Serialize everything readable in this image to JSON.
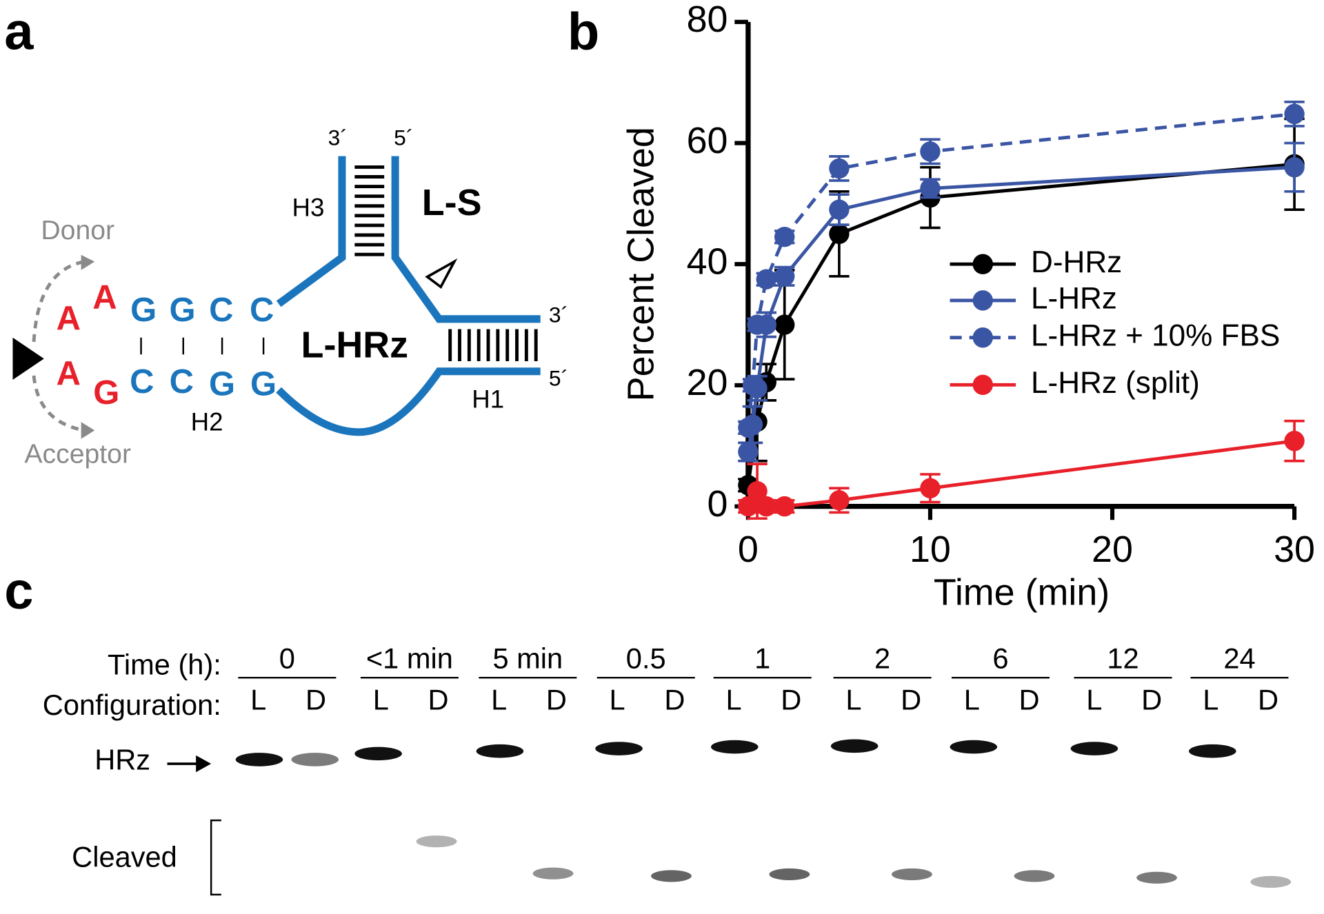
{
  "diagram": {
    "panel_label": "a",
    "donor": "Donor",
    "acceptor": "Acceptor",
    "red_bases": [
      "A",
      "A",
      "A",
      "G"
    ],
    "stem_top": [
      "G",
      "G",
      "C",
      "C"
    ],
    "stem_bottom": [
      "C",
      "C",
      "G",
      "G"
    ],
    "h1": "H1",
    "h2": "H2",
    "h3": "H3",
    "strand_ends": [
      "3´",
      "5´",
      "3´",
      "5´"
    ],
    "substrate": "L-S",
    "ribozyme": "L-HRz"
  },
  "chart_data": {
    "type": "line",
    "panel_label": "b",
    "x_label": "Time (min)",
    "y_label": "Percent Cleaved",
    "xlim": [
      0,
      30
    ],
    "ylim": [
      0,
      80
    ],
    "xticks": [
      0,
      10,
      20,
      30
    ],
    "yticks": [
      0,
      20,
      40,
      60,
      80
    ],
    "legend": "right",
    "series": [
      {
        "name": "D-HRz",
        "color": "#000000",
        "dashed": false,
        "x": [
          0,
          0.5,
          1,
          2,
          5,
          10,
          30
        ],
        "values": [
          3.5,
          14,
          20.5,
          30,
          45,
          51,
          56.5
        ],
        "errors": [
          1,
          6.5,
          3,
          9,
          7,
          5,
          7.5
        ]
      },
      {
        "name": "L-HRz",
        "color": "#3a55a4",
        "dashed": false,
        "x": [
          0,
          0.25,
          0.5,
          1,
          2,
          5,
          10,
          30
        ],
        "values": [
          9,
          13.5,
          19.5,
          30,
          38,
          49,
          52.5,
          56
        ],
        "errors": [
          1.5,
          3,
          2,
          2,
          1.5,
          2.5,
          1.5,
          4
        ]
      },
      {
        "name": "L-HRz + 10% FBS",
        "color": "#3a55a4",
        "dashed": true,
        "x": [
          0,
          0.25,
          0.5,
          1,
          2,
          5,
          10,
          30
        ],
        "values": [
          13,
          20,
          30,
          37.5,
          44.5,
          55.8,
          58.6,
          64.8
        ],
        "errors": [
          1,
          1,
          1,
          1,
          1,
          2,
          2,
          2
        ]
      },
      {
        "name": "L-HRz (split)",
        "color": "#e8202a",
        "dashed": false,
        "x": [
          0,
          0.5,
          1,
          2,
          5,
          10,
          30
        ],
        "values": [
          0,
          2.5,
          0,
          0,
          1,
          3,
          10.8
        ],
        "errors": [
          1,
          4.5,
          1,
          1,
          2,
          2.3,
          3.3
        ]
      }
    ]
  },
  "gel": {
    "panel_label": "c",
    "time_heading": "Time (h):",
    "config_heading": "Configuration:",
    "times": [
      "0",
      "<1 min",
      "5 min",
      "0.5",
      "1",
      "2",
      "6",
      "12",
      "24"
    ],
    "configs": [
      "L",
      "D"
    ],
    "hrz": "HRz",
    "cleaved": "Cleaved"
  }
}
